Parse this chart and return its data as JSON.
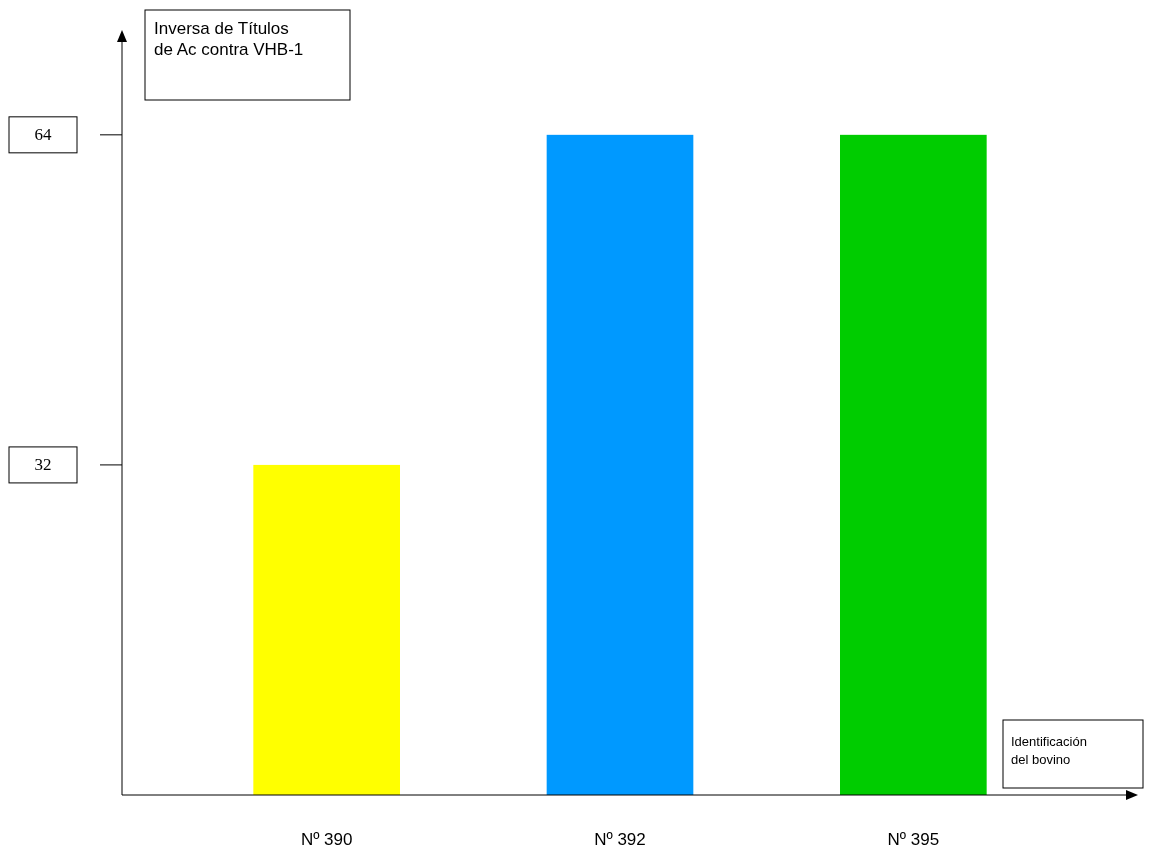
{
  "chart_data": {
    "type": "bar",
    "ylabel": "Inversa de Títulos de Ac contra VHB-1",
    "xlabel": "Identificación del bovino",
    "categories": [
      "Nº 390",
      "Nº 392",
      "Nº 395"
    ],
    "values": [
      32,
      64,
      64
    ],
    "colors": [
      "#ffff00",
      "#0099ff",
      "#00cc00"
    ],
    "ylim": [
      0,
      73
    ],
    "yticks": [
      32,
      64
    ],
    "grid": false
  }
}
